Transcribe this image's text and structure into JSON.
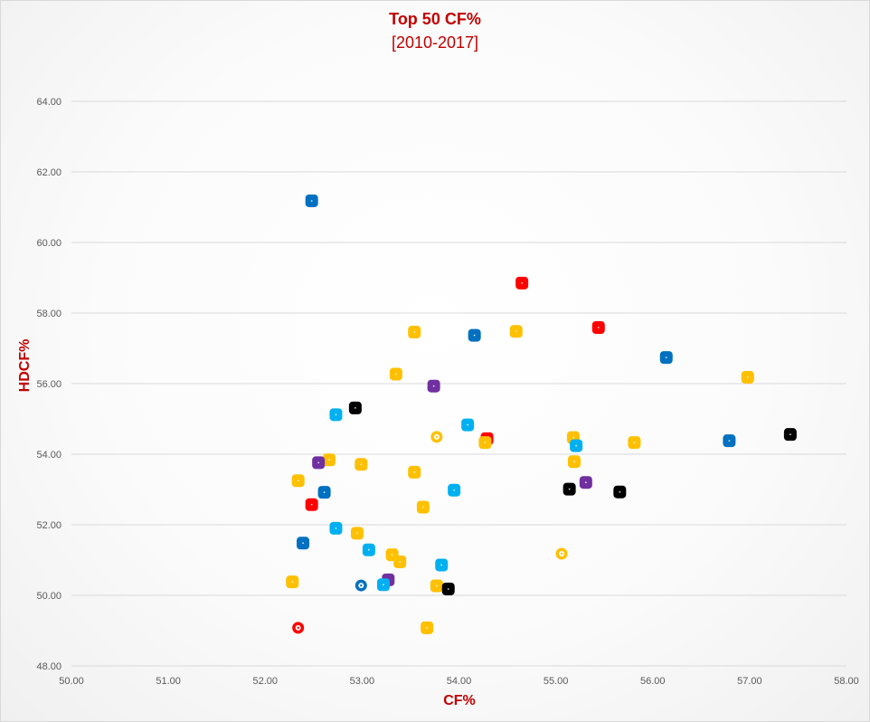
{
  "chart_data": {
    "type": "scatter",
    "title": "Top 50 CF%",
    "subtitle": "[2010-2017]",
    "xlabel": "CF%",
    "ylabel": "HDCF%",
    "xlim": [
      50,
      58
    ],
    "ylim": [
      48,
      64
    ],
    "xticks": [
      50,
      51,
      52,
      53,
      54,
      55,
      56,
      57,
      58
    ],
    "yticks": [
      48,
      50,
      52,
      54,
      56,
      58,
      60,
      62,
      64
    ],
    "xtick_labels": [
      "50.00",
      "51.00",
      "52.00",
      "53.00",
      "54.00",
      "55.00",
      "56.00",
      "57.00",
      "58.00"
    ],
    "ytick_labels": [
      "48.00",
      "50.00",
      "52.00",
      "54.00",
      "56.00",
      "58.00",
      "60.00",
      "62.00",
      "64.00"
    ],
    "grid": true,
    "legend": "none",
    "color_key": {
      "blue": "#0070c0",
      "light_blue": "#00b0f0",
      "gold": "#ffc000",
      "red": "#ff0000",
      "purple": "#7030a0",
      "black": "#000000"
    },
    "points": [
      {
        "x": 52.48,
        "y": 61.18,
        "color": "blue"
      },
      {
        "x": 54.65,
        "y": 58.85,
        "color": "red"
      },
      {
        "x": 55.44,
        "y": 57.59,
        "color": "red"
      },
      {
        "x": 53.54,
        "y": 57.46,
        "color": "gold"
      },
      {
        "x": 54.59,
        "y": 57.48,
        "color": "gold"
      },
      {
        "x": 54.16,
        "y": 57.37,
        "color": "blue"
      },
      {
        "x": 56.14,
        "y": 56.74,
        "color": "blue"
      },
      {
        "x": 53.35,
        "y": 56.27,
        "color": "gold"
      },
      {
        "x": 56.98,
        "y": 56.18,
        "color": "gold"
      },
      {
        "x": 53.74,
        "y": 55.93,
        "color": "purple"
      },
      {
        "x": 52.93,
        "y": 55.31,
        "color": "black"
      },
      {
        "x": 52.73,
        "y": 55.12,
        "color": "light_blue"
      },
      {
        "x": 54.09,
        "y": 54.83,
        "color": "light_blue"
      },
      {
        "x": 53.77,
        "y": 54.49,
        "color": "gold",
        "ring": true
      },
      {
        "x": 54.29,
        "y": 54.44,
        "color": "red"
      },
      {
        "x": 54.27,
        "y": 54.33,
        "color": "gold"
      },
      {
        "x": 55.18,
        "y": 54.47,
        "color": "gold"
      },
      {
        "x": 55.21,
        "y": 54.24,
        "color": "light_blue"
      },
      {
        "x": 55.81,
        "y": 54.33,
        "color": "gold"
      },
      {
        "x": 56.79,
        "y": 54.38,
        "color": "blue"
      },
      {
        "x": 57.42,
        "y": 54.56,
        "color": "black"
      },
      {
        "x": 52.66,
        "y": 53.84,
        "color": "gold"
      },
      {
        "x": 52.55,
        "y": 53.76,
        "color": "purple"
      },
      {
        "x": 52.99,
        "y": 53.71,
        "color": "gold"
      },
      {
        "x": 53.54,
        "y": 53.49,
        "color": "gold"
      },
      {
        "x": 55.19,
        "y": 53.79,
        "color": "gold"
      },
      {
        "x": 52.34,
        "y": 53.25,
        "color": "gold"
      },
      {
        "x": 55.31,
        "y": 53.2,
        "color": "purple"
      },
      {
        "x": 55.14,
        "y": 53.01,
        "color": "black"
      },
      {
        "x": 55.66,
        "y": 52.93,
        "color": "black"
      },
      {
        "x": 52.61,
        "y": 52.92,
        "color": "blue"
      },
      {
        "x": 53.95,
        "y": 52.98,
        "color": "light_blue"
      },
      {
        "x": 52.48,
        "y": 52.57,
        "color": "red"
      },
      {
        "x": 53.63,
        "y": 52.5,
        "color": "gold"
      },
      {
        "x": 52.73,
        "y": 51.9,
        "color": "light_blue"
      },
      {
        "x": 52.95,
        "y": 51.76,
        "color": "gold"
      },
      {
        "x": 52.39,
        "y": 51.48,
        "color": "blue"
      },
      {
        "x": 53.07,
        "y": 51.29,
        "color": "light_blue"
      },
      {
        "x": 55.06,
        "y": 51.18,
        "color": "gold",
        "ring": true
      },
      {
        "x": 53.31,
        "y": 51.15,
        "color": "gold"
      },
      {
        "x": 53.39,
        "y": 50.95,
        "color": "gold"
      },
      {
        "x": 53.82,
        "y": 50.86,
        "color": "light_blue"
      },
      {
        "x": 53.27,
        "y": 50.44,
        "color": "purple"
      },
      {
        "x": 52.28,
        "y": 50.38,
        "color": "gold"
      },
      {
        "x": 52.99,
        "y": 50.28,
        "color": "blue",
        "ring": true
      },
      {
        "x": 53.22,
        "y": 50.3,
        "color": "light_blue"
      },
      {
        "x": 53.77,
        "y": 50.27,
        "color": "gold"
      },
      {
        "x": 53.89,
        "y": 50.18,
        "color": "black"
      },
      {
        "x": 52.34,
        "y": 49.08,
        "color": "red",
        "ring": true
      },
      {
        "x": 53.67,
        "y": 49.08,
        "color": "gold"
      }
    ]
  }
}
